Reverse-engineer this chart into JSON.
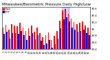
{
  "title": "Milwaukee/Barometric Pressure Daily High/Low",
  "background_color": "#ffffff",
  "plot_bg_color": "#ffffff",
  "bar_width": 0.4,
  "days": [
    1,
    2,
    3,
    4,
    5,
    6,
    7,
    8,
    9,
    10,
    11,
    12,
    13,
    14,
    15,
    16,
    17,
    18,
    19,
    20,
    21,
    22,
    23,
    24,
    25,
    26,
    27,
    28,
    29,
    30,
    31
  ],
  "high_values": [
    30.05,
    30.12,
    29.98,
    30.15,
    30.1,
    30.08,
    30.18,
    30.05,
    29.95,
    30.02,
    30.1,
    29.92,
    30.05,
    29.88,
    29.75,
    29.82,
    29.9,
    29.68,
    29.8,
    29.95,
    30.25,
    30.55,
    30.6,
    30.45,
    30.3,
    30.2,
    30.15,
    30.18,
    30.22,
    30.1,
    30.05
  ],
  "low_values": [
    29.85,
    29.92,
    29.72,
    29.88,
    29.88,
    29.85,
    29.95,
    29.82,
    29.68,
    29.8,
    29.88,
    29.7,
    29.82,
    29.65,
    29.52,
    29.58,
    29.68,
    29.45,
    29.55,
    29.72,
    30.02,
    30.28,
    30.35,
    30.22,
    30.05,
    29.98,
    29.92,
    29.95,
    29.98,
    29.88,
    29.82
  ],
  "high_color": "#ff0000",
  "low_color": "#0000ff",
  "highlight_days": [
    22,
    23,
    24
  ],
  "highlight_color": "#ccccff",
  "ylim_min": 29.4,
  "ylim_max": 30.65,
  "ytick_values": [
    29.4,
    29.6,
    29.8,
    30.0,
    30.2,
    30.4,
    30.6
  ],
  "ytick_labels": [
    "29.4",
    "29.6",
    "29.8",
    "30",
    "30.2",
    "30.4",
    "30.6"
  ],
  "title_fontsize": 4.0,
  "tick_fontsize": 2.8,
  "legend_fontsize": 2.8,
  "legend_high": "High",
  "legend_low": "Low",
  "legend_high_color": "#ff0000",
  "legend_low_color": "#0000ff"
}
